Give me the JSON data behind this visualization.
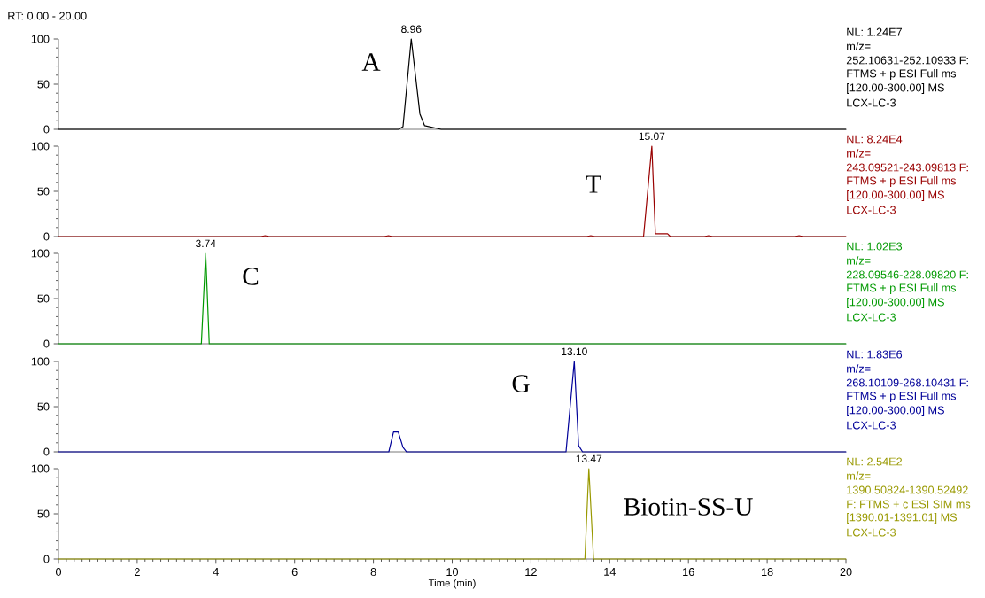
{
  "chart_data": [
    {
      "type": "line",
      "title": "RT: 0.00 - 20.00",
      "xlim": [
        0,
        20
      ],
      "ylim": [
        0,
        100
      ],
      "yticks": [
        0,
        50,
        100
      ],
      "tick_labels": "y",
      "series": [
        {
          "name": "A",
          "color": "#000000",
          "x": [
            0,
            8.64,
            8.75,
            8.96,
            9.18,
            9.3,
            9.72,
            20
          ],
          "values": [
            0,
            0,
            3,
            100,
            17,
            4,
            0,
            0
          ]
        }
      ],
      "annotations": [
        {
          "text": "8.96",
          "x": 8.96,
          "y": 100
        },
        "NL: 1.24E7",
        "m/z=",
        "252.10631-252.10933 F:",
        "FTMS + p ESI Full ms",
        "[120.00-300.00]  MS",
        "LCX-LC-3"
      ]
    },
    {
      "type": "line",
      "xlim": [
        0,
        20
      ],
      "ylim": [
        0,
        100
      ],
      "yticks": [
        0,
        50,
        100
      ],
      "tick_labels": "y",
      "series": [
        {
          "name": "T",
          "color": "#990000",
          "x": [
            0,
            5.15,
            5.25,
            5.35,
            8.28,
            8.38,
            8.48,
            13.42,
            13.52,
            13.62,
            14.86,
            15.07,
            15.16,
            15.47,
            15.54,
            16.41,
            16.51,
            16.61,
            18.71,
            18.81,
            18.91,
            20
          ],
          "values": [
            0,
            0,
            1,
            0,
            0,
            1,
            0,
            0,
            1,
            0,
            0,
            100,
            3,
            3,
            0,
            0,
            1,
            0,
            0,
            1,
            0,
            0
          ]
        }
      ],
      "annotations": [
        {
          "text": "15.07",
          "x": 15.07,
          "y": 100
        },
        "NL: 8.24E4",
        "m/z=",
        "243.09521-243.09813 F:",
        "FTMS + p ESI Full ms",
        "[120.00-300.00]  MS",
        "LCX-LC-3"
      ]
    },
    {
      "type": "line",
      "xlim": [
        0,
        20
      ],
      "ylim": [
        0,
        100
      ],
      "yticks": [
        0,
        50,
        100
      ],
      "tick_labels": "y",
      "series": [
        {
          "name": "C",
          "color": "#009900",
          "x": [
            0,
            3.63,
            3.74,
            3.83,
            20
          ],
          "values": [
            0,
            0,
            100,
            0,
            0
          ]
        }
      ],
      "annotations": [
        {
          "text": "3.74",
          "x": 3.74,
          "y": 100
        },
        "NL: 1.02E3",
        "m/z=",
        "228.09546-228.09820 F:",
        "FTMS + p ESI Full ms",
        "[120.00-300.00]  MS",
        "LCX-LC-3"
      ]
    },
    {
      "type": "line",
      "xlim": [
        0,
        20
      ],
      "ylim": [
        0,
        100
      ],
      "yticks": [
        0,
        50,
        100
      ],
      "tick_labels": "y",
      "series": [
        {
          "name": "G",
          "color": "#000099",
          "x": [
            0,
            8.39,
            8.51,
            8.63,
            8.75,
            8.84,
            12.89,
            13.1,
            13.21,
            13.31,
            20
          ],
          "values": [
            0,
            0,
            22,
            22,
            5,
            0,
            0,
            100,
            7,
            0,
            0
          ]
        }
      ],
      "annotations": [
        {
          "text": "13.10",
          "x": 13.1,
          "y": 100
        },
        "NL: 1.83E6",
        "m/z=",
        "268.10109-268.10431 F:",
        "FTMS + p ESI Full ms",
        "[120.00-300.00]  MS",
        "LCX-LC-3"
      ]
    },
    {
      "type": "line",
      "xlabel": "Time (min)",
      "xlim": [
        0,
        20
      ],
      "xticks": [
        0,
        2,
        4,
        6,
        8,
        10,
        12,
        14,
        16,
        18,
        20
      ],
      "ylim": [
        0,
        100
      ],
      "yticks": [
        0,
        50,
        100
      ],
      "series": [
        {
          "name": "Biotin-SS-U",
          "color": "#999900",
          "x": [
            0,
            13.37,
            13.47,
            13.59,
            20
          ],
          "values": [
            0,
            0,
            100,
            0,
            0
          ]
        }
      ],
      "annotations": [
        {
          "text": "13.47",
          "x": 13.47,
          "y": 100
        },
        "NL: 2.54E2",
        "m/z=",
        "1390.50824-1390.52492",
        "F: FTMS + c ESI SIM ms",
        "[1390.01-1391.01]  MS",
        "LCX-LC-3"
      ]
    }
  ]
}
